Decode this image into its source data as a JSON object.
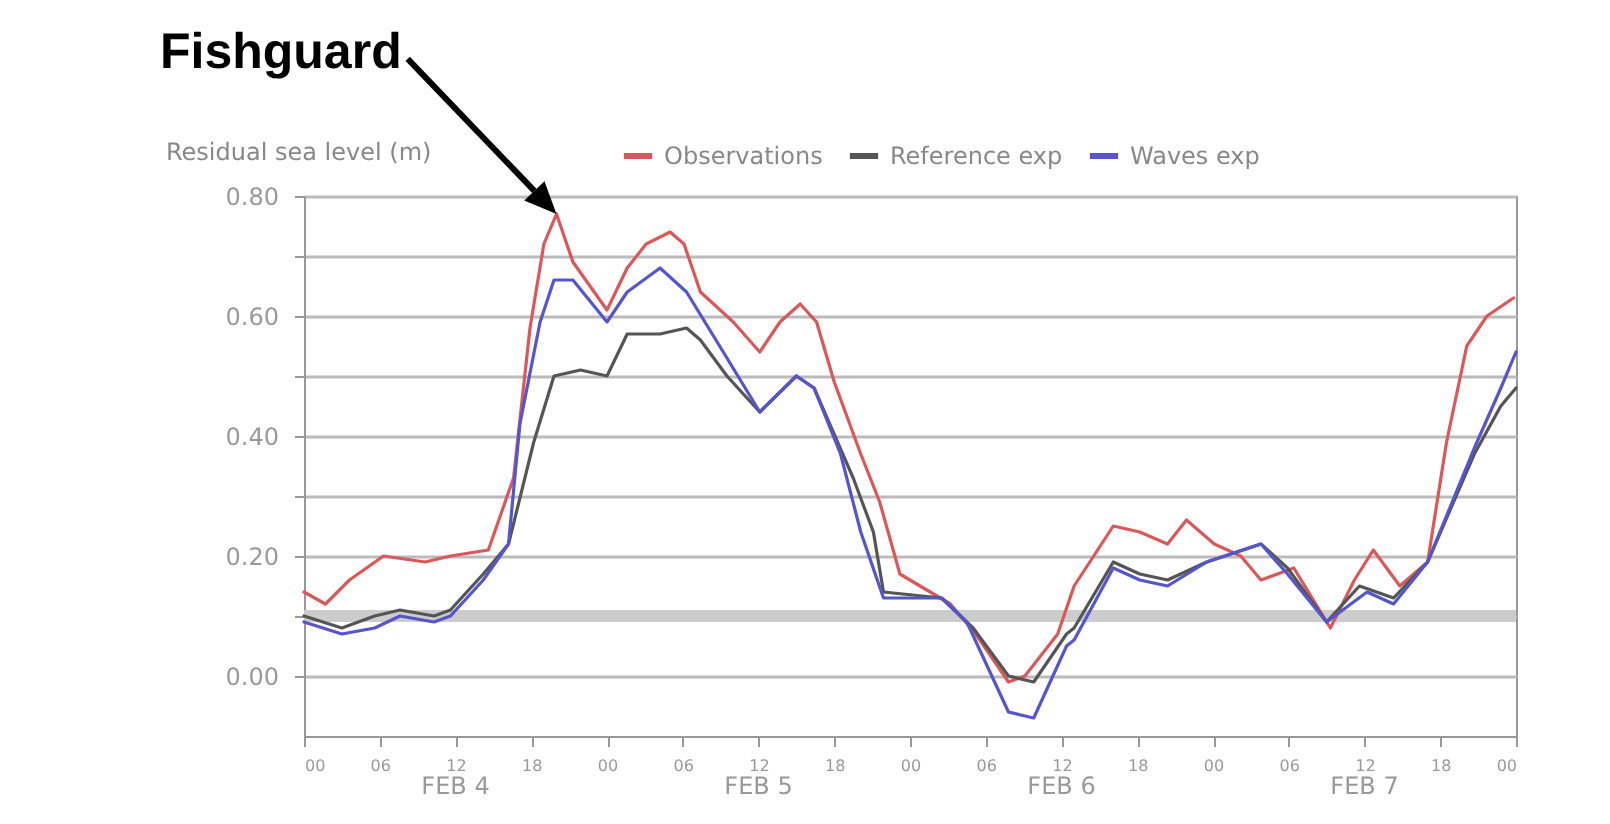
{
  "chart_data": {
    "type": "line",
    "title": "Residual sea level (m)",
    "xlim": [
      0,
      96
    ],
    "xticks": [
      {
        "value": 0,
        "label": "00"
      },
      {
        "value": 6,
        "label": "06"
      },
      {
        "value": 12,
        "label": "12"
      },
      {
        "value": 18,
        "label": "18"
      },
      {
        "value": 24,
        "label": "00"
      },
      {
        "value": 30,
        "label": "06"
      },
      {
        "value": 36,
        "label": "12"
      },
      {
        "value": 42,
        "label": "18"
      },
      {
        "value": 48,
        "label": "00"
      },
      {
        "value": 54,
        "label": "06"
      },
      {
        "value": 60,
        "label": "12"
      },
      {
        "value": 66,
        "label": "18"
      },
      {
        "value": 72,
        "label": "00"
      },
      {
        "value": 78,
        "label": "06"
      },
      {
        "value": 84,
        "label": "12"
      },
      {
        "value": 90,
        "label": "18"
      },
      {
        "value": 96,
        "label": "00"
      }
    ],
    "ylim": [
      -0.1,
      0.8
    ],
    "yticks": [
      {
        "value": 0,
        "label": "0.00"
      },
      {
        "value": 0.1,
        "label": null
      },
      {
        "value": 0.2,
        "label": "0.20"
      },
      {
        "value": 0.3,
        "label": null
      },
      {
        "value": 0.4,
        "label": "0.40"
      },
      {
        "value": 0.5,
        "label": null
      },
      {
        "value": 0.6,
        "label": "0.60"
      },
      {
        "value": 0.7,
        "label": null
      },
      {
        "value": 0.8,
        "label": "0.80"
      }
    ],
    "grid": "y",
    "legend": "top right",
    "ref_lines": [
      {
        "axis": "y",
        "value": 0.1,
        "label": null,
        "color": "#cccccc"
      }
    ],
    "annotations": [
      "FEB 4",
      "FEB 5",
      "FEB 6",
      "FEB 7",
      "Fishguard"
    ],
    "series": [
      {
        "name": "Observations",
        "color": "#d9585a",
        "x": [
          0,
          1.7,
          3.6,
          6.3,
          9.6,
          11.6,
          14.6,
          16.6,
          17.9,
          19,
          20,
          21.3,
          24,
          25.6,
          27.1,
          29,
          30.1,
          31.4,
          34,
          36.1,
          37.7,
          39.3,
          40.6,
          42,
          44.1,
          45.6,
          47.2,
          51.2,
          53.2,
          55.8,
          57.1,
          59.7,
          61,
          64.1,
          66.2,
          68.4,
          69.9,
          72.1,
          74.2,
          75.8,
          78.4,
          81.3,
          83.2,
          84.7,
          86.8,
          89,
          90.5,
          92.1,
          93.7,
          95.8
        ],
        "values": [
          0.14,
          0.12,
          0.16,
          0.2,
          0.19,
          0.2,
          0.21,
          0.33,
          0.58,
          0.72,
          0.77,
          0.69,
          0.61,
          0.68,
          0.72,
          0.74,
          0.72,
          0.64,
          0.59,
          0.54,
          0.59,
          0.62,
          0.59,
          0.49,
          0.37,
          0.29,
          0.17,
          0.12,
          0.07,
          -0.01,
          0,
          0.07,
          0.15,
          0.25,
          0.24,
          0.22,
          0.26,
          0.22,
          0.2,
          0.16,
          0.18,
          0.08,
          0.16,
          0.21,
          0.15,
          0.19,
          0.39,
          0.55,
          0.6,
          0.63
        ]
      },
      {
        "name": "Reference exp",
        "color": "#555555",
        "x": [
          0,
          3,
          5.6,
          7.6,
          10.3,
          11.6,
          14.2,
          16.2,
          18.2,
          19.8,
          21.9,
          24,
          25.6,
          28.2,
          30.3,
          31.4,
          33.5,
          36.1,
          39,
          40.4,
          43.5,
          45.1,
          45.9,
          50.5,
          53,
          55.8,
          57.8,
          60.4,
          61,
          64.1,
          66.2,
          68.4,
          71.5,
          75.8,
          77.9,
          81,
          83.6,
          86.3,
          89,
          92.7,
          94.8,
          96
        ],
        "values": [
          0.1,
          0.08,
          0.1,
          0.11,
          0.1,
          0.11,
          0.17,
          0.22,
          0.39,
          0.5,
          0.51,
          0.5,
          0.57,
          0.57,
          0.58,
          0.56,
          0.5,
          0.44,
          0.5,
          0.48,
          0.33,
          0.24,
          0.14,
          0.13,
          0.08,
          0,
          -0.01,
          0.07,
          0.08,
          0.19,
          0.17,
          0.16,
          0.19,
          0.22,
          0.18,
          0.09,
          0.15,
          0.13,
          0.19,
          0.37,
          0.45,
          0.48
        ]
      },
      {
        "name": "Waves exp",
        "color": "#5555cc",
        "x": [
          0,
          3,
          5.6,
          7.6,
          10.3,
          11.6,
          14.2,
          16.2,
          17.1,
          18.7,
          19.8,
          21.3,
          24,
          25.6,
          28.2,
          30.3,
          33.5,
          36.1,
          39,
          40.4,
          42.5,
          44.1,
          45.9,
          50.5,
          52.5,
          55.8,
          57.8,
          60.4,
          61,
          64.1,
          66.2,
          68.4,
          71.5,
          75.8,
          77.9,
          81,
          84.2,
          86.3,
          89,
          92.7,
          94.8,
          96
        ],
        "values": [
          0.09,
          0.07,
          0.08,
          0.1,
          0.09,
          0.1,
          0.16,
          0.22,
          0.42,
          0.59,
          0.66,
          0.66,
          0.59,
          0.64,
          0.68,
          0.64,
          0.53,
          0.44,
          0.5,
          0.48,
          0.37,
          0.24,
          0.13,
          0.13,
          0.09,
          -0.06,
          -0.07,
          0.05,
          0.06,
          0.18,
          0.16,
          0.15,
          0.19,
          0.22,
          0.17,
          0.09,
          0.14,
          0.12,
          0.19,
          0.38,
          0.48,
          0.54
        ]
      }
    ]
  }
}
